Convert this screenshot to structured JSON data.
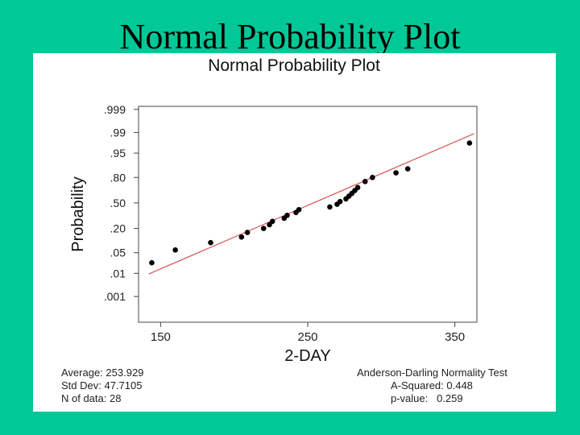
{
  "slide": {
    "title": "Normal Probability Plot"
  },
  "chart_data": {
    "type": "scatter",
    "title": "Normal Probability Plot",
    "xlabel": "2-DAY",
    "ylabel": "Probability",
    "xlim": [
      135,
      365
    ],
    "x_ticks": [
      150,
      250,
      350
    ],
    "x_tick_labels": [
      "150",
      "250",
      "350"
    ],
    "y_scale": "normal-probability",
    "y_ticks": [
      0.001,
      0.01,
      0.05,
      0.2,
      0.5,
      0.8,
      0.95,
      0.99,
      0.999
    ],
    "y_tick_labels": [
      ".001",
      ".01",
      ".05",
      ".20",
      ".50",
      ".80",
      ".95",
      ".99",
      ".999"
    ],
    "grid": false,
    "points": [
      {
        "x": 144,
        "y": 0.024
      },
      {
        "x": 160,
        "y": 0.06
      },
      {
        "x": 184,
        "y": 0.095
      },
      {
        "x": 205,
        "y": 0.13
      },
      {
        "x": 209,
        "y": 0.165
      },
      {
        "x": 220,
        "y": 0.2
      },
      {
        "x": 224,
        "y": 0.236
      },
      {
        "x": 226,
        "y": 0.271
      },
      {
        "x": 234,
        "y": 0.306
      },
      {
        "x": 236,
        "y": 0.341
      },
      {
        "x": 242,
        "y": 0.376
      },
      {
        "x": 244,
        "y": 0.412
      },
      {
        "x": 265,
        "y": 0.447
      },
      {
        "x": 270,
        "y": 0.482
      },
      {
        "x": 272,
        "y": 0.518
      },
      {
        "x": 276,
        "y": 0.553
      },
      {
        "x": 278,
        "y": 0.588
      },
      {
        "x": 280,
        "y": 0.624
      },
      {
        "x": 282,
        "y": 0.659
      },
      {
        "x": 284,
        "y": 0.694
      },
      {
        "x": 289,
        "y": 0.76
      },
      {
        "x": 294,
        "y": 0.8
      },
      {
        "x": 310,
        "y": 0.84
      },
      {
        "x": 318,
        "y": 0.87
      },
      {
        "x": 360,
        "y": 0.976
      }
    ],
    "fit_line": {
      "color": "#d9534f",
      "mean": 253.929,
      "std": 47.7105
    },
    "stats_left": [
      "Average: 253.929",
      "Std Dev: 47.7105",
      "N of data: 28"
    ],
    "stats_right": [
      "Anderson-Darling Normality Test",
      "A-Squared: 0.448",
      "p-value:   0.259"
    ]
  }
}
